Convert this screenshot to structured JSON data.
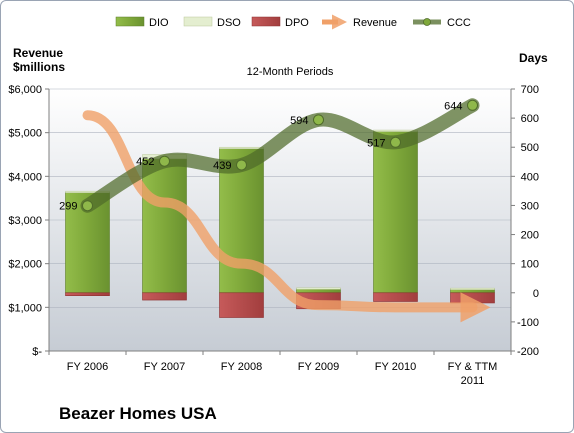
{
  "chart_data": {
    "type": "bar",
    "title": "12-Month Periods",
    "company": "Beazer Homes USA",
    "left_axis_label": [
      "Revenue",
      "$millions"
    ],
    "right_axis_label": "Days",
    "categories": [
      [
        "FY 2006"
      ],
      [
        "FY 2007"
      ],
      [
        "FY 2008"
      ],
      [
        "FY 2009"
      ],
      [
        "FY 2010"
      ],
      [
        "FY & TTM",
        "2011"
      ]
    ],
    "left_ticks": [
      "$-",
      "$1,000",
      "$2,000",
      "$3,000",
      "$4,000",
      "$5,000",
      "$6,000"
    ],
    "right_ticks": [
      "-200",
      "-100",
      "0",
      "100",
      "200",
      "300",
      "400",
      "500",
      "600",
      "700"
    ],
    "left_ylim": [
      0,
      6000
    ],
    "right_ylim": [
      -200,
      700
    ],
    "legend": [
      "DIO",
      "DSO",
      "DPO",
      "Revenue",
      "CCC"
    ],
    "series": [
      {
        "name": "DIO",
        "values": [
          345,
          460,
          495,
          14,
          555,
          13
        ]
      },
      {
        "name": "DSO",
        "values": [
          4,
          15,
          5,
          3,
          4,
          3
        ]
      },
      {
        "name": "DPO",
        "values": [
          -10,
          -25,
          -85,
          -55,
          -30,
          -35
        ]
      },
      {
        "name": "Revenue",
        "values": [
          5400,
          3400,
          2000,
          1050,
          1000,
          1000
        ]
      },
      {
        "name": "CCC",
        "values": [
          299,
          452,
          439,
          594,
          517,
          644
        ]
      }
    ],
    "ccc_labels": [
      "299",
      "452",
      "439",
      "594",
      "517",
      "644"
    ],
    "colors": {
      "dio": "#7fa83a",
      "dso": "#e4eed0",
      "dpo": "#b84c4c",
      "revenue": "#f0a068",
      "ccc": "#4f6b2a",
      "plot_top": "#ffffff",
      "plot_bottom": "#c6ccd4"
    }
  }
}
